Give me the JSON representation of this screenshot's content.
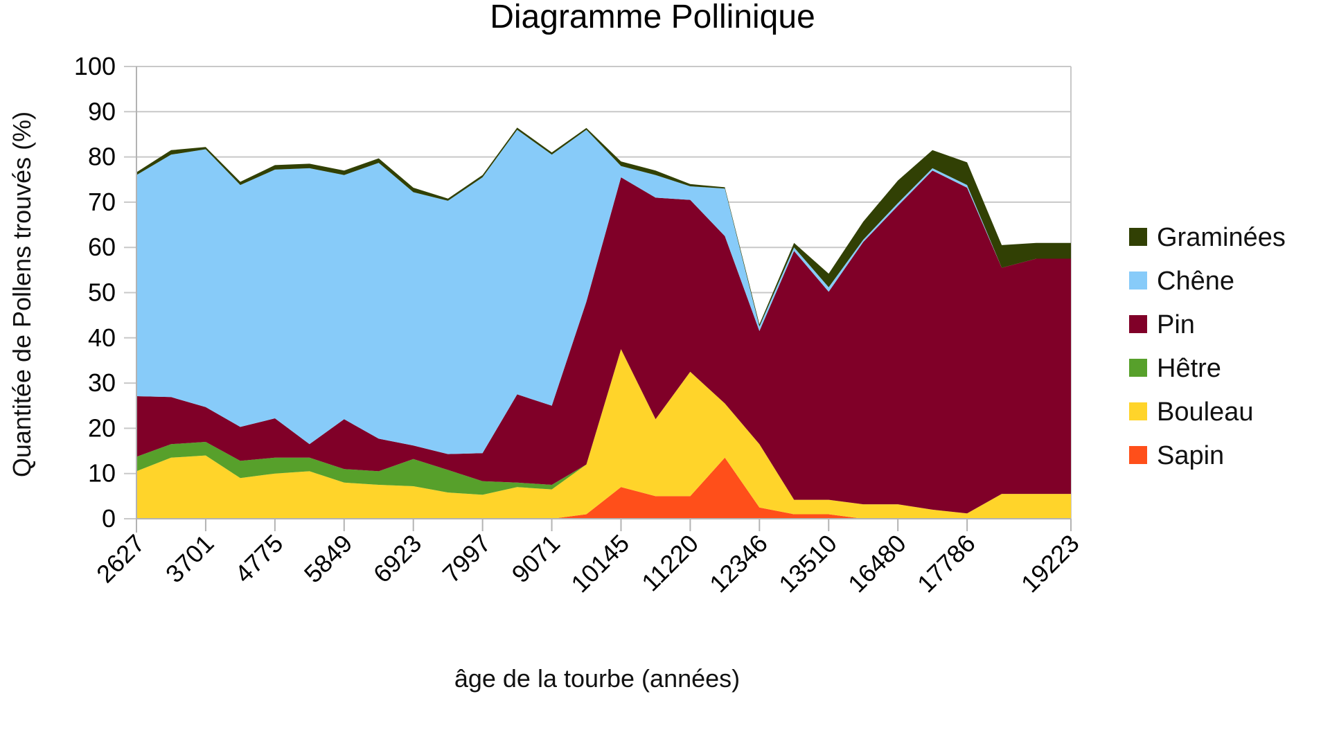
{
  "chart_data": {
    "type": "area",
    "stacked": true,
    "title": "Diagramme Pollinique",
    "xlabel": "âge de la tourbe (années)",
    "ylabel": "Quantitée de Pollens trouvés (%)",
    "ylim": [
      0,
      100
    ],
    "yticks": [
      0,
      10,
      20,
      30,
      40,
      50,
      60,
      70,
      80,
      90,
      100
    ],
    "xticks": [
      "2627",
      "3701",
      "4775",
      "5849",
      "6923",
      "7997",
      "9071",
      "10145",
      "11220",
      "12346",
      "13510",
      "16480",
      "17786",
      "19223"
    ],
    "grid": true,
    "legend_position": "right",
    "series": [
      {
        "name": "Sapin",
        "color": "#ff4f1a",
        "values": [
          0,
          0,
          0,
          0,
          0,
          0,
          0,
          0,
          0,
          0,
          0,
          0,
          0,
          1,
          7,
          5,
          5,
          13.5,
          2.5,
          1,
          1,
          0,
          0,
          0,
          0,
          0,
          0,
          0
        ]
      },
      {
        "name": "Bouleau",
        "color": "#ffd42a",
        "values": [
          10.5,
          13.5,
          14,
          9,
          10,
          10.5,
          8,
          7.5,
          7.2,
          5.8,
          5.3,
          7,
          6.5,
          11,
          30.5,
          17,
          27.5,
          12,
          14,
          3.2,
          3.2,
          3.2,
          3.2,
          2,
          1.2,
          5.5,
          5.5,
          5.5
        ]
      },
      {
        "name": "Hêtre",
        "color": "#57a02b",
        "values": [
          3.2,
          3,
          3,
          3.8,
          3.5,
          3,
          3,
          3,
          6,
          5,
          3,
          1,
          1,
          0,
          0,
          0,
          0,
          0,
          0,
          0,
          0,
          0,
          0,
          0,
          0,
          0,
          0,
          0
        ]
      },
      {
        "name": "Pin",
        "color": "#800028",
        "values": [
          13.4,
          10.4,
          7.7,
          7.5,
          8.7,
          3,
          11,
          7.2,
          3,
          3.5,
          6.2,
          19.5,
          17.5,
          36,
          38,
          49,
          38,
          37,
          25,
          55,
          46,
          58,
          66,
          75,
          72,
          50,
          52,
          52
        ]
      },
      {
        "name": "Chêne",
        "color": "#87cbf9",
        "values": [
          48.9,
          53.6,
          57,
          53.5,
          55,
          61,
          54,
          61,
          56,
          56,
          61,
          58.5,
          55.5,
          38,
          2.5,
          5,
          3,
          10.5,
          1,
          0.8,
          1,
          0.5,
          0.6,
          0.5,
          0.6,
          0,
          0,
          0
        ]
      },
      {
        "name": "Graminées",
        "color": "#314004",
        "values": [
          0.6,
          1,
          0.5,
          0.7,
          1,
          1,
          1,
          1,
          1,
          0.5,
          0.5,
          0.5,
          0.5,
          0.4,
          1,
          1,
          0.5,
          0.3,
          0.5,
          1,
          3,
          4,
          5,
          4,
          5,
          5,
          3.5,
          3.5
        ]
      }
    ]
  }
}
